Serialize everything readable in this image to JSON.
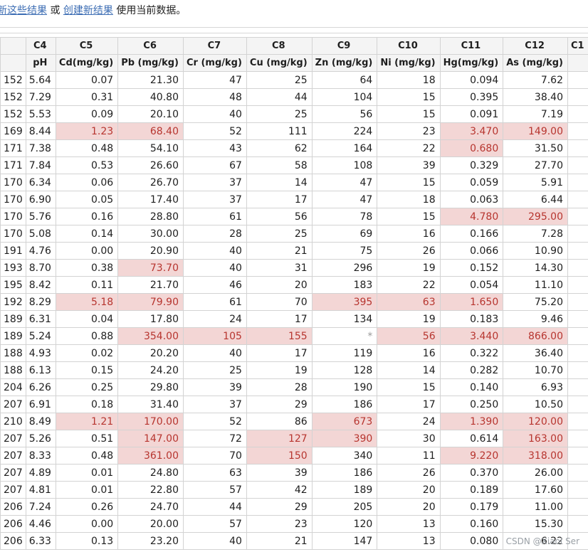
{
  "topbar": {
    "link1": "新这些结果",
    "or": "或",
    "link2": "创建新结果",
    "rest": "使用当前数据。"
  },
  "columns": [
    "C4",
    "C5",
    "C6",
    "C7",
    "C8",
    "C9",
    "C10",
    "C11",
    "C12",
    "C1"
  ],
  "names": [
    "pH",
    "Cd(mg/kg)",
    "Pb (mg/kg)",
    "Cr (mg/kg)",
    "Cu (mg/kg)",
    "Zn (mg/kg)",
    "Ni (mg/kg)",
    "Hg(mg/kg)",
    "As (mg/kg)",
    ""
  ],
  "rows": [
    {
      "id": "152",
      "cells": [
        "5.64",
        "0.07",
        "21.30",
        "47",
        "25",
        "64",
        "18",
        "0.094",
        "7.62",
        ""
      ]
    },
    {
      "id": "152",
      "cells": [
        "7.29",
        "0.31",
        "40.80",
        "48",
        "44",
        "104",
        "15",
        "0.395",
        "38.40",
        ""
      ]
    },
    {
      "id": "152",
      "cells": [
        "5.53",
        "0.09",
        "20.10",
        "40",
        "25",
        "56",
        "15",
        "0.091",
        "7.19",
        ""
      ]
    },
    {
      "id": "169",
      "cells": [
        "8.44",
        "1.23",
        "68.40",
        "52",
        "111",
        "224",
        "23",
        "3.470",
        "149.00",
        ""
      ]
    },
    {
      "id": "171",
      "cells": [
        "7.38",
        "0.48",
        "54.10",
        "43",
        "62",
        "164",
        "22",
        "0.680",
        "31.50",
        ""
      ]
    },
    {
      "id": "171",
      "cells": [
        "7.84",
        "0.53",
        "26.60",
        "67",
        "58",
        "108",
        "39",
        "0.329",
        "27.70",
        ""
      ]
    },
    {
      "id": "170",
      "cells": [
        "6.34",
        "0.06",
        "26.70",
        "37",
        "14",
        "47",
        "15",
        "0.059",
        "5.91",
        ""
      ]
    },
    {
      "id": "170",
      "cells": [
        "6.90",
        "0.05",
        "17.40",
        "37",
        "17",
        "47",
        "18",
        "0.063",
        "6.44",
        ""
      ]
    },
    {
      "id": "170",
      "cells": [
        "5.76",
        "0.16",
        "28.80",
        "61",
        "56",
        "78",
        "15",
        "4.780",
        "295.00",
        ""
      ]
    },
    {
      "id": "170",
      "cells": [
        "5.08",
        "0.14",
        "30.00",
        "28",
        "25",
        "69",
        "16",
        "0.166",
        "7.28",
        ""
      ]
    },
    {
      "id": "191",
      "cells": [
        "4.76",
        "0.00",
        "20.90",
        "40",
        "21",
        "75",
        "26",
        "0.066",
        "10.90",
        ""
      ]
    },
    {
      "id": "193",
      "cells": [
        "8.70",
        "0.38",
        "73.70",
        "40",
        "31",
        "296",
        "19",
        "0.152",
        "14.30",
        ""
      ]
    },
    {
      "id": "195",
      "cells": [
        "8.42",
        "0.11",
        "21.70",
        "46",
        "20",
        "183",
        "22",
        "0.054",
        "11.10",
        ""
      ]
    },
    {
      "id": "192",
      "cells": [
        "8.29",
        "5.18",
        "79.90",
        "61",
        "70",
        "395",
        "63",
        "1.650",
        "75.20",
        ""
      ]
    },
    {
      "id": "189",
      "cells": [
        "6.31",
        "0.04",
        "17.80",
        "24",
        "17",
        "134",
        "19",
        "0.183",
        "9.46",
        ""
      ]
    },
    {
      "id": "189",
      "cells": [
        "5.24",
        "0.88",
        "354.00",
        "105",
        "155",
        "*",
        "56",
        "3.440",
        "866.00",
        ""
      ]
    },
    {
      "id": "188",
      "cells": [
        "4.93",
        "0.02",
        "20.20",
        "40",
        "17",
        "119",
        "16",
        "0.322",
        "36.40",
        ""
      ]
    },
    {
      "id": "188",
      "cells": [
        "6.13",
        "0.15",
        "24.20",
        "25",
        "19",
        "128",
        "14",
        "0.282",
        "10.70",
        ""
      ]
    },
    {
      "id": "204",
      "cells": [
        "6.26",
        "0.25",
        "29.80",
        "39",
        "28",
        "190",
        "15",
        "0.140",
        "6.93",
        ""
      ]
    },
    {
      "id": "207",
      "cells": [
        "6.91",
        "0.18",
        "31.40",
        "37",
        "29",
        "186",
        "17",
        "0.250",
        "10.50",
        ""
      ]
    },
    {
      "id": "210",
      "cells": [
        "8.49",
        "1.21",
        "170.00",
        "52",
        "86",
        "673",
        "24",
        "1.390",
        "120.00",
        ""
      ]
    },
    {
      "id": "207",
      "cells": [
        "5.26",
        "0.51",
        "147.00",
        "72",
        "127",
        "390",
        "30",
        "0.614",
        "163.00",
        ""
      ]
    },
    {
      "id": "207",
      "cells": [
        "8.33",
        "0.48",
        "361.00",
        "70",
        "150",
        "340",
        "11",
        "9.220",
        "318.00",
        ""
      ]
    },
    {
      "id": "207",
      "cells": [
        "4.89",
        "0.01",
        "24.80",
        "63",
        "39",
        "186",
        "26",
        "0.370",
        "26.00",
        ""
      ]
    },
    {
      "id": "207",
      "cells": [
        "4.81",
        "0.01",
        "22.80",
        "57",
        "42",
        "189",
        "20",
        "0.189",
        "17.60",
        ""
      ]
    },
    {
      "id": "206",
      "cells": [
        "7.24",
        "0.26",
        "24.70",
        "44",
        "29",
        "205",
        "20",
        "0.179",
        "11.00",
        ""
      ]
    },
    {
      "id": "206",
      "cells": [
        "4.46",
        "0.00",
        "20.00",
        "57",
        "23",
        "120",
        "13",
        "0.160",
        "15.30",
        ""
      ]
    },
    {
      "id": "206",
      "cells": [
        "6.33",
        "0.13",
        "23.20",
        "40",
        "21",
        "147",
        "13",
        "0.080",
        "6.22",
        ""
      ]
    }
  ],
  "highlights": [
    [
      3,
      1
    ],
    [
      3,
      2
    ],
    [
      3,
      7
    ],
    [
      3,
      8
    ],
    [
      4,
      7
    ],
    [
      8,
      7
    ],
    [
      8,
      8
    ],
    [
      11,
      2
    ],
    [
      13,
      1
    ],
    [
      13,
      2
    ],
    [
      13,
      5
    ],
    [
      13,
      6
    ],
    [
      13,
      7
    ],
    [
      15,
      2
    ],
    [
      15,
      3
    ],
    [
      15,
      4
    ],
    [
      15,
      6
    ],
    [
      15,
      7
    ],
    [
      15,
      8
    ],
    [
      20,
      1
    ],
    [
      20,
      2
    ],
    [
      20,
      5
    ],
    [
      20,
      7
    ],
    [
      20,
      8
    ],
    [
      21,
      2
    ],
    [
      21,
      4
    ],
    [
      21,
      5
    ],
    [
      21,
      8
    ],
    [
      22,
      2
    ],
    [
      22,
      4
    ],
    [
      22,
      7
    ],
    [
      22,
      8
    ]
  ],
  "colors": {
    "highlight_bg": "#f3d6d5",
    "highlight_text": "#b7352f",
    "link": "#3b6cb3"
  },
  "watermark": "CSDN @Xiaol Ser"
}
